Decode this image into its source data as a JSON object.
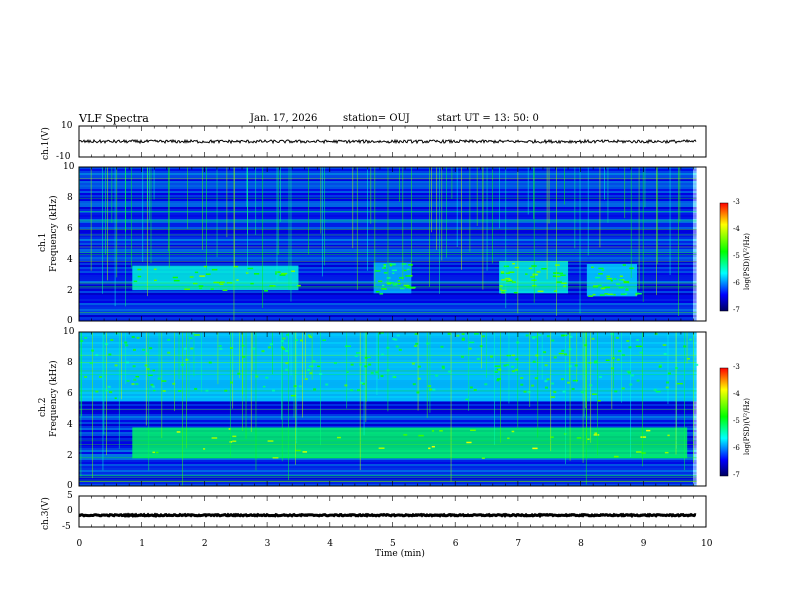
{
  "header": {
    "title": "VLF Spectra",
    "date": "Jan. 17, 2026",
    "station": "station= OUJ",
    "start": "start  UT  =   13: 50: 0"
  },
  "panels": {
    "ch1_wave": {
      "ylabel": "ch.1(V)",
      "yticks": [
        "10",
        "-10"
      ]
    },
    "ch1_spec": {
      "ylabel_top": "ch.1",
      "ylabel": "Frequency (kHz)",
      "yticks": [
        "10",
        "8",
        "6",
        "4",
        "2",
        "0"
      ]
    },
    "ch2_spec": {
      "ylabel_top": "ch.2",
      "ylabel": "Frequency (kHz)",
      "yticks": [
        "10",
        "8",
        "6",
        "4",
        "2",
        "0"
      ]
    },
    "ch3_wave": {
      "ylabel": "ch.3(V)",
      "yticks": [
        "5",
        "0",
        "-5"
      ]
    }
  },
  "colorbar": {
    "label": "log(PSD)(V²/Hz)",
    "ticks": [
      "-3",
      "-4",
      "-5",
      "-6",
      "-7"
    ],
    "colors": [
      "#ff0000",
      "#ffff00",
      "#00ff00",
      "#00ffff",
      "#0000ff",
      "#000080"
    ]
  },
  "xaxis": {
    "label": "Time (min)",
    "ticks": [
      "0",
      "1",
      "2",
      "3",
      "4",
      "5",
      "6",
      "7",
      "8",
      "9",
      "10"
    ]
  },
  "chart_data": {
    "type": "heatmap",
    "title": "VLF Spectra",
    "xlabel": "Time (min)",
    "xlim": [
      0,
      10
    ],
    "data_end_min": 9.85,
    "channels": [
      {
        "name": "ch.1",
        "ylabel": "Frequency (kHz)",
        "ylim": [
          0,
          10
        ],
        "zlim": [
          -7,
          -3
        ],
        "emissions": [
          {
            "t_start": 0.85,
            "t_end": 3.5,
            "f_low": 2.0,
            "f_high": 3.6,
            "level": -5.0
          },
          {
            "t_start": 4.7,
            "t_end": 5.3,
            "f_low": 1.8,
            "f_high": 3.8,
            "level": -5.3
          },
          {
            "t_start": 6.7,
            "t_end": 7.8,
            "f_low": 1.8,
            "f_high": 3.9,
            "level": -5.0
          },
          {
            "t_start": 8.1,
            "t_end": 8.9,
            "f_low": 1.6,
            "f_high": 3.7,
            "level": -5.2
          }
        ]
      },
      {
        "name": "ch.2",
        "ylabel": "Frequency (kHz)",
        "ylim": [
          0,
          10
        ],
        "zlim": [
          -7,
          -3
        ],
        "emissions": [
          {
            "t_start": 0.85,
            "t_end": 9.7,
            "f_low": 1.8,
            "f_high": 3.8,
            "level": -4.6
          },
          {
            "t_start": 0.0,
            "t_end": 9.85,
            "f_low": 5.5,
            "f_high": 10.0,
            "level": -5.2
          }
        ]
      }
    ],
    "waveforms": [
      {
        "name": "ch.1(V)",
        "ylim": [
          -10,
          10
        ],
        "mean": 0,
        "amplitude": 1.0
      },
      {
        "name": "ch.3(V)",
        "ylim": [
          -5,
          5
        ],
        "mean": -1.2,
        "amplitude": 0.2
      }
    ]
  }
}
